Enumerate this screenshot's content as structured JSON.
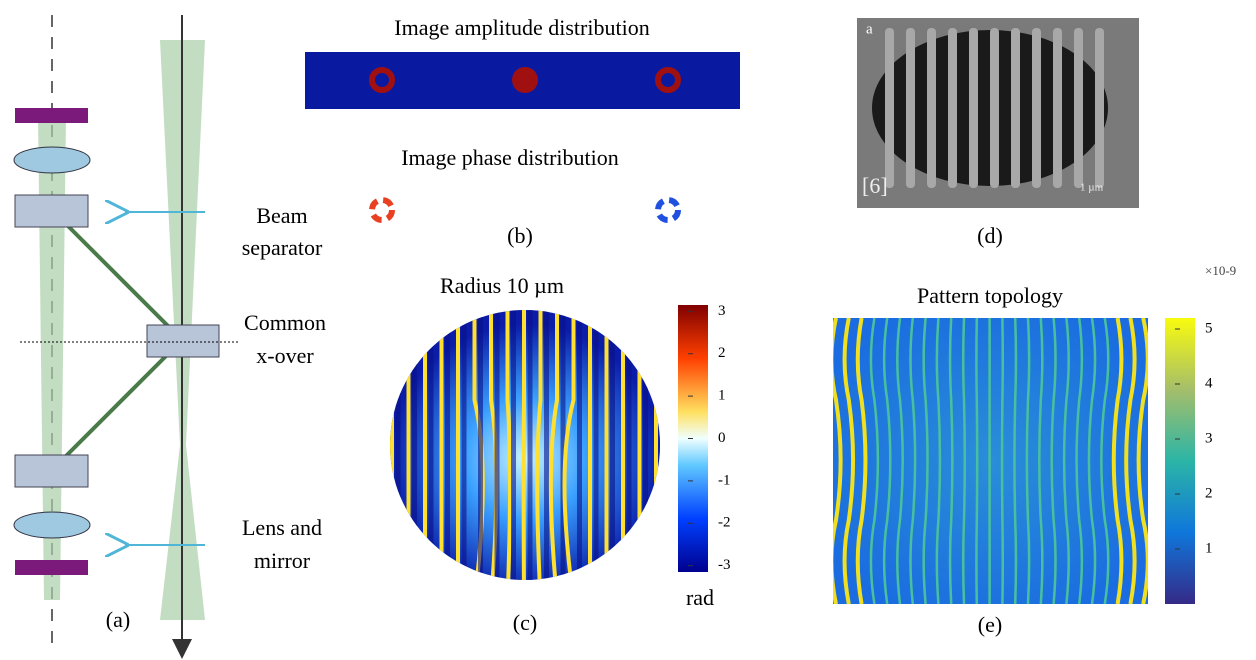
{
  "panel_a": {
    "labels": [
      {
        "lines": [
          "Beam",
          "separator"
        ]
      },
      {
        "lines": [
          "Common",
          "x-over"
        ]
      },
      {
        "lines": [
          "Lens and",
          "mirror"
        ]
      }
    ],
    "caption": "(a)"
  },
  "panel_b": {
    "amplitude_title": "Image amplitude distribution",
    "phase_title": "Image phase distribution",
    "caption": "(b)"
  },
  "panel_c": {
    "title": "Radius 10 µm",
    "colorbar_unit": "rad",
    "colorbar_lim": [
      -3.15,
      3.15
    ],
    "colorbar_ticks": [
      3,
      2,
      1,
      0,
      -1,
      -2,
      -3
    ],
    "caption": "(c)"
  },
  "panel_d": {
    "corner_label": "a",
    "reference": "[6]",
    "scale_label": "1 µm",
    "caption": "(d)"
  },
  "panel_e": {
    "title": "Pattern topology",
    "colorbar_exponent": "×10-9",
    "colorbar_lim": [
      0,
      5.2
    ],
    "colorbar_ticks": [
      5,
      4,
      3,
      2,
      1
    ],
    "caption": "(e)"
  }
}
